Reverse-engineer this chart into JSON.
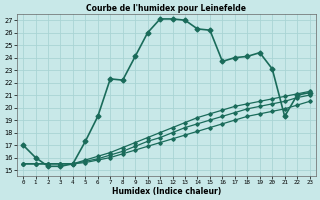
{
  "title": "Courbe de l'humidex pour Leinefelde",
  "xlabel": "Humidex (Indice chaleur)",
  "bg_color": "#c8e8e8",
  "grid_color": "#aad4d4",
  "line_color": "#1a6b5a",
  "xlim": [
    -0.5,
    23.5
  ],
  "ylim": [
    14.5,
    27.5
  ],
  "xticks": [
    0,
    1,
    2,
    3,
    4,
    5,
    6,
    7,
    8,
    9,
    10,
    11,
    12,
    13,
    14,
    15,
    16,
    17,
    18,
    19,
    20,
    21,
    22,
    23
  ],
  "yticks": [
    15,
    16,
    17,
    18,
    19,
    20,
    21,
    22,
    23,
    24,
    25,
    26,
    27
  ],
  "series": [
    {
      "x": [
        0,
        1,
        2,
        3,
        4,
        5,
        6,
        7,
        8,
        9,
        10,
        11,
        12,
        13,
        14,
        15,
        16,
        17,
        18,
        19,
        20,
        21,
        22,
        23
      ],
      "y": [
        17,
        16,
        15.3,
        15.3,
        15.5,
        17.3,
        19.3,
        22.3,
        22.2,
        24.1,
        26.0,
        27.1,
        27.1,
        27.0,
        26.3,
        26.2,
        23.7,
        24.0,
        24.1,
        24.4,
        23.1,
        19.3,
        21.0,
        21.2
      ],
      "marker": "D",
      "markersize": 2.5,
      "linewidth": 1.2,
      "color": "#1a6b5a"
    },
    {
      "x": [
        0,
        1,
        2,
        3,
        4,
        5,
        6,
        7,
        8,
        9,
        10,
        11,
        12,
        13,
        14,
        15,
        16,
        17,
        18,
        19,
        20,
        21,
        22,
        23
      ],
      "y": [
        15.5,
        15.5,
        15.5,
        15.5,
        15.5,
        15.8,
        16.1,
        16.4,
        16.8,
        17.2,
        17.6,
        18.0,
        18.4,
        18.8,
        19.2,
        19.5,
        19.8,
        20.1,
        20.3,
        20.5,
        20.7,
        20.9,
        21.1,
        21.3
      ],
      "marker": "D",
      "markersize": 1.8,
      "linewidth": 0.9,
      "color": "#1a6b5a"
    },
    {
      "x": [
        0,
        1,
        2,
        3,
        4,
        5,
        6,
        7,
        8,
        9,
        10,
        11,
        12,
        13,
        14,
        15,
        16,
        17,
        18,
        19,
        20,
        21,
        22,
        23
      ],
      "y": [
        15.5,
        15.5,
        15.5,
        15.5,
        15.5,
        15.7,
        15.9,
        16.2,
        16.5,
        16.9,
        17.3,
        17.6,
        18.0,
        18.4,
        18.7,
        19.0,
        19.3,
        19.6,
        19.9,
        20.1,
        20.3,
        20.5,
        20.8,
        21.0
      ],
      "marker": "D",
      "markersize": 1.8,
      "linewidth": 0.9,
      "color": "#1a6b5a"
    },
    {
      "x": [
        0,
        1,
        2,
        3,
        4,
        5,
        6,
        7,
        8,
        9,
        10,
        11,
        12,
        13,
        14,
        15,
        16,
        17,
        18,
        19,
        20,
        21,
        22,
        23
      ],
      "y": [
        15.5,
        15.5,
        15.5,
        15.5,
        15.5,
        15.6,
        15.8,
        16.0,
        16.3,
        16.6,
        16.9,
        17.2,
        17.5,
        17.8,
        18.1,
        18.4,
        18.7,
        19.0,
        19.3,
        19.5,
        19.7,
        19.9,
        20.2,
        20.5
      ],
      "marker": "D",
      "markersize": 1.8,
      "linewidth": 0.9,
      "color": "#1a6b5a"
    }
  ]
}
